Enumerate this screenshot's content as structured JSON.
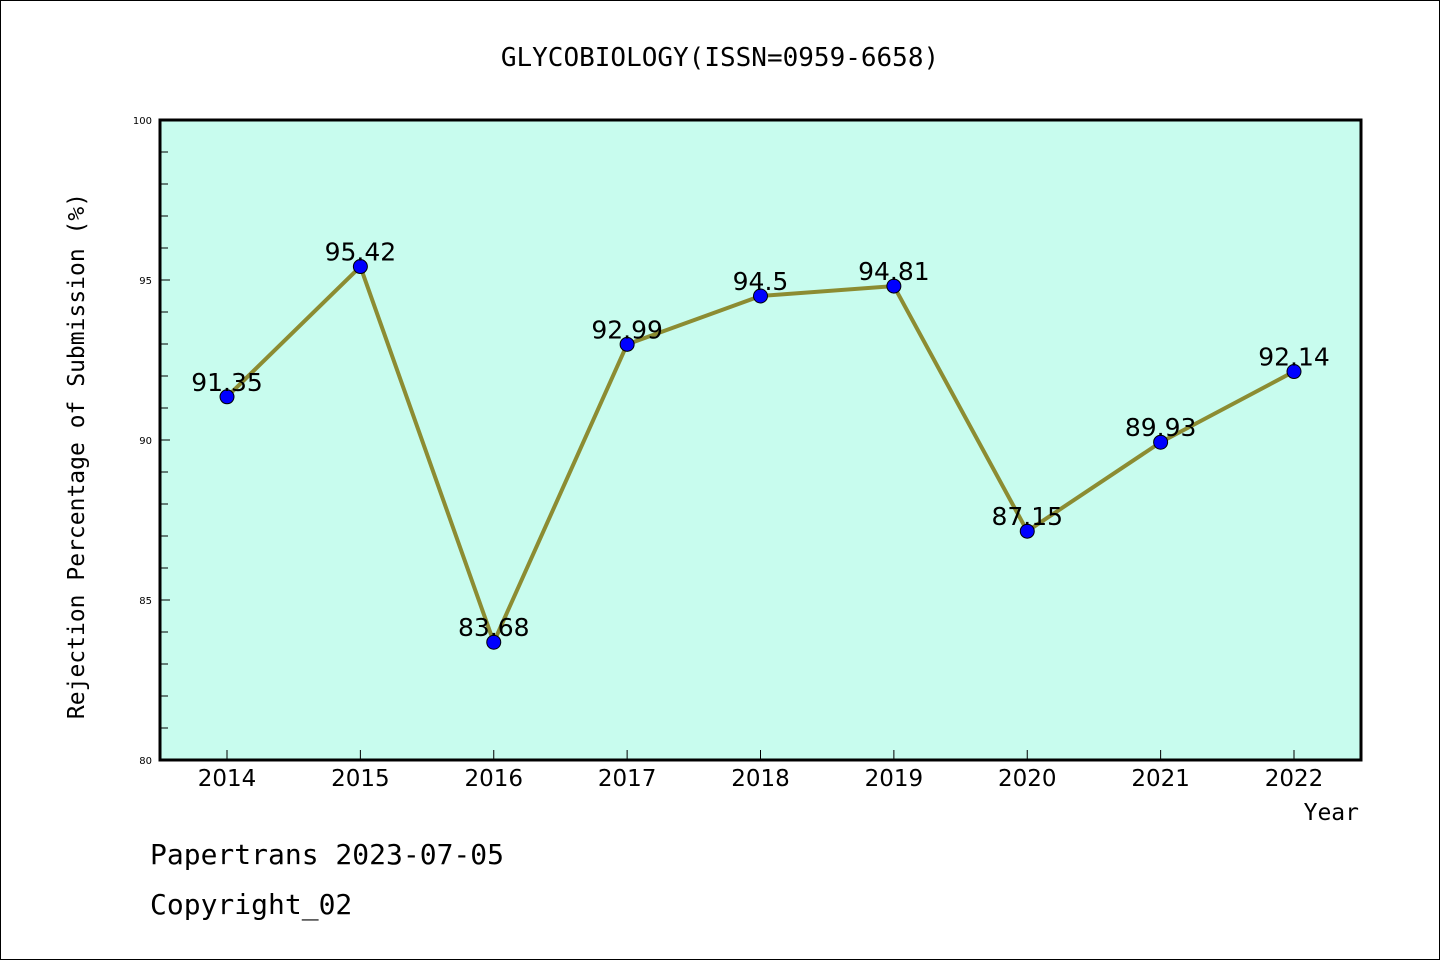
{
  "chart_data": {
    "type": "line",
    "title": "GLYCOBIOLOGY(ISSN=0959-6658)",
    "xlabel": "Year",
    "ylabel": "Rejection Percentage of Submission (%)",
    "categories": [
      "2014",
      "2015",
      "2016",
      "2017",
      "2018",
      "2019",
      "2020",
      "2021",
      "2022"
    ],
    "series": [
      {
        "values": [
          91.35,
          95.42,
          83.68,
          92.99,
          94.5,
          94.81,
          87.15,
          89.93,
          92.14
        ],
        "labels": [
          "91.35",
          "95.42",
          "83.68",
          "92.99",
          "94.5",
          "94.81",
          "87.15",
          "89.93",
          "92.14"
        ]
      }
    ],
    "ylim": [
      80,
      100
    ],
    "yticks": [
      "80",
      "85",
      "90",
      "95",
      "100"
    ],
    "grid": false,
    "colors": {
      "plot_background": "#c8fcee",
      "line": "#8c8c32",
      "marker": "#0000ff"
    }
  },
  "footer": {
    "line1": "Papertrans 2023-07-05",
    "line2": "Copyright_02"
  }
}
